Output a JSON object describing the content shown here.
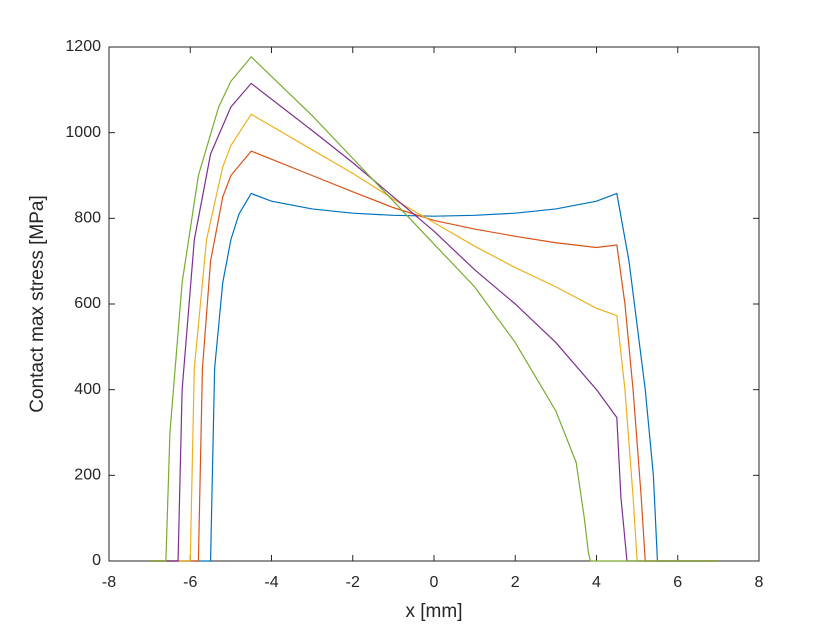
{
  "chart_data": {
    "type": "line",
    "xlabel": "x [mm]",
    "ylabel": "Contact max stress [MPa]",
    "xlim": [
      -8,
      8
    ],
    "xticks": [
      -8,
      -6,
      -4,
      -2,
      0,
      2,
      4,
      6,
      8
    ],
    "ylim": [
      0,
      1200
    ],
    "yticks": [
      0,
      200,
      400,
      600,
      800,
      1000,
      1200
    ],
    "series": [
      {
        "color": "#0072BD",
        "x": [
          -7,
          -5.5,
          -5.4,
          -5.2,
          -5,
          -4.8,
          -4.5,
          -4,
          -3,
          -2,
          -1,
          0,
          1,
          2,
          3,
          4,
          4.5,
          4.8,
          5,
          5.2,
          5.4,
          5.5,
          7
        ],
        "values": [
          0,
          0,
          450,
          650,
          750,
          810,
          858,
          840,
          822,
          812,
          807,
          805,
          807,
          812,
          822,
          840,
          858,
          700,
          550,
          400,
          200,
          0,
          0
        ]
      },
      {
        "color": "#D95319",
        "x": [
          -7,
          -5.8,
          -5.7,
          -5.5,
          -5.2,
          -5,
          -4.5,
          -3,
          -2,
          -1,
          0,
          1,
          2,
          3,
          4,
          4.5,
          4.7,
          4.9,
          5.1,
          5.2,
          7
        ],
        "values": [
          0,
          0,
          450,
          700,
          850,
          900,
          957,
          900,
          862,
          825,
          795,
          775,
          758,
          743,
          732,
          738,
          600,
          400,
          150,
          0,
          0
        ]
      },
      {
        "color": "#EDB120",
        "x": [
          -7,
          -6,
          -5.9,
          -5.6,
          -5.2,
          -5,
          -4.5,
          -3,
          -2,
          -1,
          0,
          1,
          2,
          3,
          4,
          4.5,
          4.7,
          4.9,
          5,
          7
        ],
        "values": [
          0,
          0,
          450,
          750,
          920,
          970,
          1043,
          960,
          905,
          845,
          790,
          735,
          685,
          640,
          590,
          573,
          400,
          150,
          0,
          0
        ]
      },
      {
        "color": "#7E2F8E",
        "x": [
          -7,
          -6.3,
          -6.2,
          -5.9,
          -5.5,
          -5,
          -4.5,
          -3,
          -2,
          -1,
          0,
          1,
          2,
          3,
          4,
          4.5,
          4.6,
          4.75,
          7
        ],
        "values": [
          0,
          0,
          400,
          750,
          950,
          1060,
          1115,
          1005,
          930,
          850,
          770,
          680,
          600,
          510,
          400,
          335,
          150,
          0,
          0
        ]
      },
      {
        "color": "#77AC30",
        "x": [
          -7,
          -6.6,
          -6.5,
          -6.2,
          -5.8,
          -5.3,
          -5,
          -4.5,
          -3,
          -2,
          -1,
          0,
          1,
          2,
          3,
          3.5,
          3.7,
          3.8,
          3.85,
          7
        ],
        "values": [
          0,
          0,
          300,
          650,
          900,
          1060,
          1120,
          1177,
          1040,
          940,
          840,
          740,
          640,
          510,
          350,
          230,
          100,
          20,
          0,
          0
        ]
      }
    ]
  }
}
